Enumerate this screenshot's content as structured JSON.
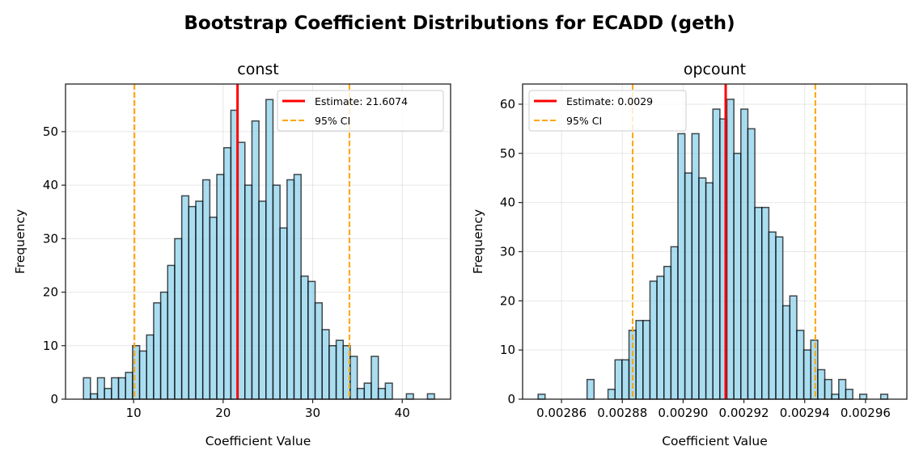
{
  "figure_title": "Bootstrap Coefficient Distributions for ECADD (geth)",
  "colors": {
    "bar_fill": "#87CEEB",
    "bar_edge": "#000000",
    "estimate": "#FF0000",
    "ci": "#FFA500",
    "grid": "#b0b0b0"
  },
  "chart_data": [
    {
      "type": "bar",
      "subtype": "histogram",
      "title": "const",
      "xlabel": "Coefficient Value",
      "ylabel": "Frequency",
      "xlim": [
        2.4,
        45.4
      ],
      "ylim": [
        0,
        58.9
      ],
      "xticks": [
        10,
        20,
        30,
        40
      ],
      "xtick_labels": [
        "10",
        "20",
        "30",
        "40"
      ],
      "yticks": [
        0,
        10,
        20,
        30,
        40,
        50
      ],
      "ytick_labels": [
        "0",
        "10",
        "20",
        "30",
        "40",
        "50"
      ],
      "grid": true,
      "legend_placement": "upper right",
      "bin_start": 4.4,
      "bin_width": 0.784,
      "counts": [
        4,
        1,
        4,
        2,
        4,
        4,
        5,
        10,
        9,
        12,
        18,
        20,
        25,
        30,
        38,
        36,
        37,
        41,
        34,
        42,
        47,
        54,
        48,
        40,
        52,
        37,
        56,
        40,
        32,
        41,
        42,
        23,
        22,
        18,
        13,
        10,
        11,
        10,
        8,
        2,
        3,
        8,
        2,
        3,
        0,
        0,
        1,
        0,
        0,
        1
      ],
      "estimate": 21.6074,
      "ci_lower": 10.1,
      "ci_upper": 34.1,
      "legend": [
        "Estimate: 21.6074",
        "95% CI"
      ]
    },
    {
      "type": "bar",
      "subtype": "histogram",
      "title": "opcount",
      "xlabel": "Coefficient Value",
      "ylabel": "Frequency",
      "xlim": [
        0.0028472,
        0.0029736
      ],
      "ylim": [
        0,
        64.1
      ],
      "xticks": [
        0.00286,
        0.00288,
        0.0029,
        0.00292,
        0.00294,
        0.00296
      ],
      "xtick_labels": [
        "0.00286",
        "0.00288",
        "0.00290",
        "0.00292",
        "0.00294",
        "0.00296"
      ],
      "yticks": [
        0,
        10,
        20,
        30,
        40,
        50,
        60
      ],
      "ytick_labels": [
        "0",
        "10",
        "20",
        "30",
        "40",
        "50",
        "60"
      ],
      "grid": true,
      "legend_placement": "upper left",
      "bin_start": 0.0028523,
      "bin_width": 2.3e-06,
      "counts": [
        1,
        0,
        0,
        0,
        0,
        0,
        0,
        4,
        0,
        0,
        2,
        8,
        8,
        14,
        16,
        16,
        24,
        25,
        27,
        31,
        54,
        46,
        54,
        45,
        44,
        59,
        57,
        61,
        50,
        59,
        55,
        39,
        39,
        34,
        33,
        19,
        21,
        14,
        10,
        12,
        6,
        4,
        1,
        4,
        2,
        0,
        1,
        0,
        0,
        1
      ],
      "estimate": 0.002914,
      "ci_lower": 0.0028834,
      "ci_upper": 0.0029435,
      "legend": [
        "Estimate: 0.0029",
        "95% CI"
      ]
    }
  ]
}
